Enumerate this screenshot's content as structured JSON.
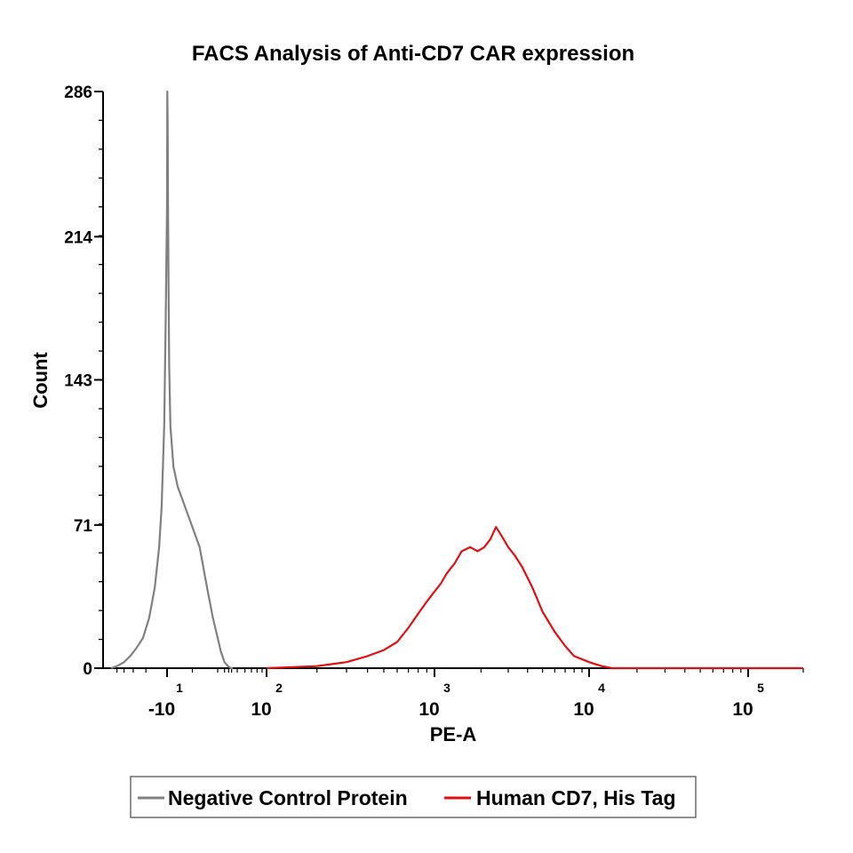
{
  "chart_data": {
    "type": "line",
    "title": "FACS Analysis of Anti-CD7 CAR expression",
    "xlabel": "PE-A",
    "ylabel": "Count",
    "x_scale": "biexponential",
    "ylim": [
      0,
      286
    ],
    "y_ticks": [
      "0",
      "71",
      "143",
      "214",
      "286"
    ],
    "x_ticks": [
      {
        "base": "-10",
        "exp": "1",
        "value": -10
      },
      {
        "base": "10",
        "exp": "2",
        "value": 100
      },
      {
        "base": "10",
        "exp": "3",
        "value": 1000
      },
      {
        "base": "10",
        "exp": "4",
        "value": 10000
      },
      {
        "base": "10",
        "exp": "5",
        "value": 100000
      }
    ],
    "legend": {
      "placement": "bottom",
      "entries": [
        {
          "label": "Negative Control Protein",
          "color": "#808080"
        },
        {
          "label": "Human CD7, His Tag",
          "color": "#e01010"
        }
      ]
    },
    "series": [
      {
        "name": "Negative Control Protein",
        "color": "#808080",
        "points": [
          [
            -60,
            0
          ],
          [
            -50,
            1
          ],
          [
            -40,
            3
          ],
          [
            -33,
            6
          ],
          [
            -27,
            10
          ],
          [
            -22,
            15
          ],
          [
            -18,
            25
          ],
          [
            -15,
            40
          ],
          [
            -13,
            60
          ],
          [
            -12,
            80
          ],
          [
            -11,
            120
          ],
          [
            -10.5,
            170
          ],
          [
            -10,
            230
          ],
          [
            -9.7,
            286
          ],
          [
            -9.4,
            270
          ],
          [
            -9,
            230
          ],
          [
            -8.5,
            190
          ],
          [
            -8,
            150
          ],
          [
            -7,
            120
          ],
          [
            -5,
            100
          ],
          [
            -3,
            90
          ],
          [
            -1,
            80
          ],
          [
            1,
            60
          ],
          [
            3,
            40
          ],
          [
            6,
            25
          ],
          [
            10,
            15
          ],
          [
            14,
            8
          ],
          [
            20,
            3
          ],
          [
            28,
            1
          ],
          [
            38,
            0
          ],
          [
            45,
            0
          ]
        ]
      },
      {
        "name": "Human CD7, His Tag",
        "color": "#e01010",
        "points": [
          [
            100,
            0
          ],
          [
            200,
            1
          ],
          [
            300,
            3
          ],
          [
            400,
            6
          ],
          [
            500,
            9
          ],
          [
            600,
            13
          ],
          [
            700,
            20
          ],
          [
            800,
            27
          ],
          [
            900,
            33
          ],
          [
            1000,
            38
          ],
          [
            1100,
            42
          ],
          [
            1200,
            47
          ],
          [
            1350,
            52
          ],
          [
            1500,
            58
          ],
          [
            1700,
            60
          ],
          [
            1900,
            58
          ],
          [
            2100,
            60
          ],
          [
            2300,
            64
          ],
          [
            2500,
            70
          ],
          [
            2700,
            66
          ],
          [
            3000,
            60
          ],
          [
            3300,
            56
          ],
          [
            3700,
            50
          ],
          [
            4300,
            40
          ],
          [
            5000,
            28
          ],
          [
            6000,
            18
          ],
          [
            7000,
            11
          ],
          [
            8000,
            6
          ],
          [
            10000,
            3
          ],
          [
            12000,
            1
          ],
          [
            14000,
            0
          ],
          [
            100000,
            0
          ],
          [
            200000,
            0
          ]
        ]
      }
    ]
  }
}
